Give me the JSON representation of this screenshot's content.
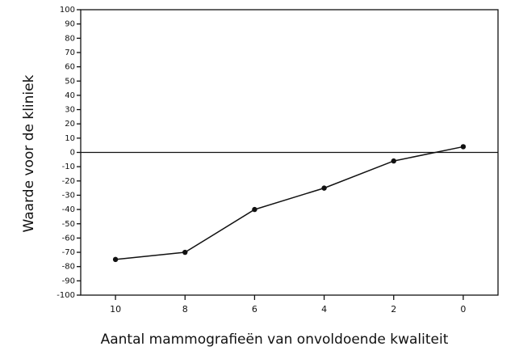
{
  "chart_data": {
    "type": "line",
    "ylabel": "Waarde voor de kliniek",
    "xlabel": "Aantal mammografieën van onvoldoende kwaliteit",
    "x": [
      10,
      8,
      6,
      4,
      2,
      0
    ],
    "series": [
      {
        "name": "Waarde",
        "color": "#111111",
        "values": [
          -75,
          -70,
          -40,
          -25,
          -6,
          4
        ]
      }
    ],
    "xlim": [
      11,
      -1
    ],
    "xticks": [
      10,
      8,
      6,
      4,
      2,
      0
    ],
    "ylim": [
      -100,
      100
    ],
    "yticks": [
      -100,
      -90,
      -80,
      -70,
      -60,
      -50,
      -40,
      -30,
      -20,
      -10,
      0,
      10,
      20,
      30,
      40,
      50,
      60,
      70,
      80,
      90,
      100
    ]
  }
}
